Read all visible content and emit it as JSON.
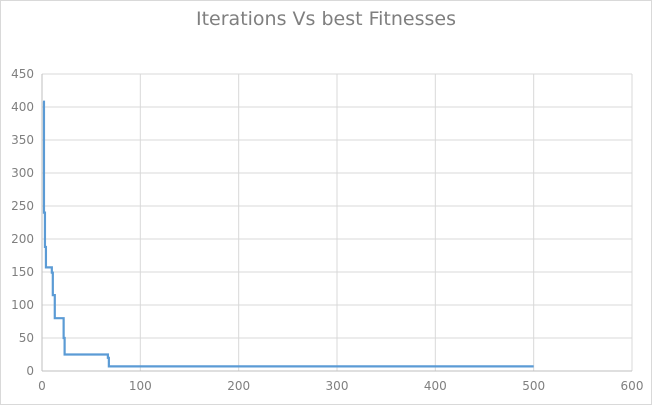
{
  "chart_data": {
    "type": "line",
    "title": "Iterations Vs best Fitnesses",
    "xlabel": "",
    "ylabel": "",
    "xlim": [
      0,
      600
    ],
    "ylim": [
      0,
      450
    ],
    "xticks": [
      0,
      100,
      200,
      300,
      400,
      500,
      600
    ],
    "yticks": [
      0,
      50,
      100,
      150,
      200,
      250,
      300,
      350,
      400,
      450
    ],
    "grid": true,
    "legend": "none",
    "series": [
      {
        "color": "#5b9bd5",
        "step": true,
        "points": [
          [
            1,
            408
          ],
          [
            2,
            240
          ],
          [
            3,
            188
          ],
          [
            4,
            157
          ],
          [
            10,
            149
          ],
          [
            11,
            115
          ],
          [
            13,
            80
          ],
          [
            22,
            50
          ],
          [
            23,
            25
          ],
          [
            67,
            20
          ],
          [
            68,
            7
          ],
          [
            500,
            7
          ]
        ]
      }
    ]
  }
}
